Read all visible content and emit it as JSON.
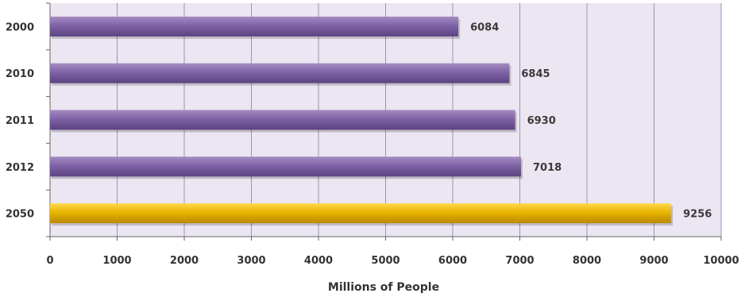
{
  "chart_data": {
    "type": "bar",
    "orientation": "horizontal",
    "categories": [
      "2000",
      "2010",
      "2011",
      "2012",
      "2050"
    ],
    "values": [
      6084,
      6845,
      6930,
      7018,
      9256
    ],
    "value_labels": [
      "6084",
      "6845",
      "6930",
      "7018",
      "9256"
    ],
    "highlight_category": "2050",
    "xlabel": "Millions of People",
    "ylabel": "",
    "title": "",
    "xlim": [
      0,
      10000
    ],
    "x_ticks": [
      "0",
      "1000",
      "2000",
      "3000",
      "4000",
      "5000",
      "6000",
      "7000",
      "8000",
      "9000",
      "10000"
    ],
    "grid": true,
    "legend": "none",
    "colors": {
      "plot_background": "#ebe6f1",
      "grid_line": "#9c91b8",
      "bar_primary": "#7b5ea0",
      "bar_highlight": "#e6b000",
      "axis_line": "#666666"
    }
  }
}
